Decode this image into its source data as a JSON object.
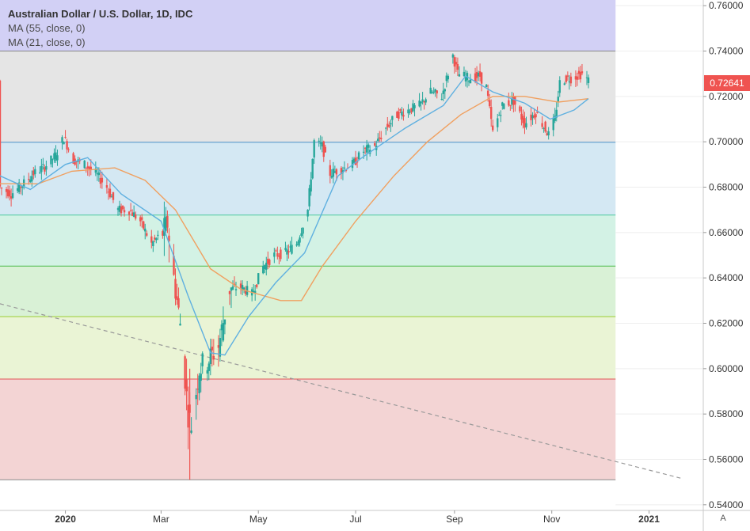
{
  "legend": {
    "title": "Australian Dollar / U.S. Dollar, 1D, IDC",
    "ma1": "MA (55, close, 0)",
    "ma2": "MA (21, close, 0)"
  },
  "last_price": "0.72641",
  "auto_label": "A",
  "colors": {
    "up": "#26a69a",
    "down": "#ef5350",
    "ma55": "#f0a060",
    "ma21": "#5fb0e0",
    "trendline": "#999999"
  },
  "chart_data": {
    "type": "candlestick",
    "x_ticks": [
      "2020",
      "Mar",
      "May",
      "Jul",
      "Sep",
      "Nov",
      "2021"
    ],
    "y_ticks": [
      "0.76000",
      "0.74000",
      "0.72000",
      "0.70000",
      "0.68000",
      "0.66000",
      "0.64000",
      "0.62000",
      "0.60000",
      "0.58000",
      "0.56000",
      "0.54000"
    ],
    "ylim": [
      0.5375,
      0.7625
    ],
    "xlim": [
      "2019-11-21",
      "2021-02-04"
    ],
    "fib_bands": [
      {
        "from": 0.74,
        "to": 0.7625,
        "color": "#d2d0f5"
      },
      {
        "from": 0.6998,
        "to": 0.74,
        "color": "#e5e5e5"
      },
      {
        "from": 0.6677,
        "to": 0.6998,
        "color": "#d4e8f3"
      },
      {
        "from": 0.6452,
        "to": 0.6677,
        "color": "#d3f2e5"
      },
      {
        "from": 0.6229,
        "to": 0.6452,
        "color": "#d9f1d6"
      },
      {
        "from": 0.5954,
        "to": 0.6229,
        "color": "#eaf4d5"
      },
      {
        "from": 0.551,
        "to": 0.5954,
        "color": "#f3d4d4"
      }
    ],
    "fib_levels": [
      {
        "value": 0.74,
        "color": "#888888"
      },
      {
        "value": 0.6998,
        "color": "#4a90c8"
      },
      {
        "value": 0.6677,
        "color": "#4cc8a0"
      },
      {
        "value": 0.6452,
        "color": "#4cbb4c"
      },
      {
        "value": 0.6229,
        "color": "#9acd32"
      },
      {
        "value": 0.5954,
        "color": "#e05555"
      },
      {
        "value": 0.551,
        "color": "#888888"
      }
    ],
    "trendline": {
      "from": [
        "2019-11-21",
        0.6286
      ],
      "to": [
        "2021-01-22",
        0.5515
      ]
    },
    "candle_path": [
      [
        "2019-11-21",
        0.68
      ],
      [
        "2019-11-28",
        0.677
      ],
      [
        "2019-12-05",
        0.681
      ],
      [
        "2019-12-12",
        0.686
      ],
      [
        "2019-12-19",
        0.689
      ],
      [
        "2019-12-26",
        0.694
      ],
      [
        "2019-12-31",
        0.702
      ],
      [
        "2020-01-06",
        0.692
      ],
      [
        "2020-01-13",
        0.69
      ],
      [
        "2020-01-20",
        0.686
      ],
      [
        "2020-01-27",
        0.68
      ],
      [
        "2020-02-03",
        0.67
      ],
      [
        "2020-02-10",
        0.67
      ],
      [
        "2020-02-17",
        0.665
      ],
      [
        "2020-02-24",
        0.655
      ],
      [
        "2020-03-02",
        0.66
      ],
      [
        "2020-03-05",
        0.664
      ],
      [
        "2020-03-09",
        0.64
      ],
      [
        "2020-03-13",
        0.62
      ],
      [
        "2020-03-18",
        0.58
      ],
      [
        "2020-03-20",
        0.575
      ],
      [
        "2020-03-25",
        0.6
      ],
      [
        "2020-04-01",
        0.605
      ],
      [
        "2020-04-06",
        0.61
      ],
      [
        "2020-04-13",
        0.635
      ],
      [
        "2020-04-20",
        0.636
      ],
      [
        "2020-04-27",
        0.633
      ],
      [
        "2020-05-04",
        0.645
      ],
      [
        "2020-05-11",
        0.65
      ],
      [
        "2020-05-18",
        0.651
      ],
      [
        "2020-05-25",
        0.655
      ],
      [
        "2020-06-01",
        0.67
      ],
      [
        "2020-06-05",
        0.7
      ],
      [
        "2020-06-10",
        0.698
      ],
      [
        "2020-06-15",
        0.686
      ],
      [
        "2020-06-22",
        0.688
      ],
      [
        "2020-06-29",
        0.69
      ],
      [
        "2020-07-06",
        0.696
      ],
      [
        "2020-07-13",
        0.698
      ],
      [
        "2020-07-20",
        0.706
      ],
      [
        "2020-07-27",
        0.712
      ],
      [
        "2020-08-03",
        0.714
      ],
      [
        "2020-08-10",
        0.716
      ],
      [
        "2020-08-17",
        0.722
      ],
      [
        "2020-08-24",
        0.72
      ],
      [
        "2020-08-31",
        0.738
      ],
      [
        "2020-09-03",
        0.73
      ],
      [
        "2020-09-10",
        0.728
      ],
      [
        "2020-09-17",
        0.729
      ],
      [
        "2020-09-21",
        0.724
      ],
      [
        "2020-09-25",
        0.704
      ],
      [
        "2020-10-01",
        0.716
      ],
      [
        "2020-10-08",
        0.718
      ],
      [
        "2020-10-15",
        0.708
      ],
      [
        "2020-10-22",
        0.713
      ],
      [
        "2020-10-30",
        0.703
      ],
      [
        "2020-11-03",
        0.71
      ],
      [
        "2020-11-06",
        0.726
      ],
      [
        "2020-11-10",
        0.728
      ],
      [
        "2020-11-13",
        0.728
      ],
      [
        "2020-11-20",
        0.73
      ],
      [
        "2020-11-24",
        0.727
      ]
    ],
    "ma55": [
      [
        "2019-11-21",
        0.6815
      ],
      [
        "2019-12-15",
        0.6815
      ],
      [
        "2020-01-05",
        0.687
      ],
      [
        "2020-02-01",
        0.6885
      ],
      [
        "2020-02-20",
        0.683
      ],
      [
        "2020-03-10",
        0.67
      ],
      [
        "2020-04-01",
        0.644
      ],
      [
        "2020-04-20",
        0.635
      ],
      [
        "2020-05-15",
        0.63
      ],
      [
        "2020-05-28",
        0.63
      ],
      [
        "2020-06-10",
        0.645
      ],
      [
        "2020-07-01",
        0.665
      ],
      [
        "2020-07-25",
        0.685
      ],
      [
        "2020-08-15",
        0.7
      ],
      [
        "2020-09-05",
        0.712
      ],
      [
        "2020-09-25",
        0.72
      ],
      [
        "2020-10-15",
        0.72
      ],
      [
        "2020-11-05",
        0.7175
      ],
      [
        "2020-11-24",
        0.719
      ]
    ],
    "ma21": [
      [
        "2019-11-21",
        0.685
      ],
      [
        "2019-12-10",
        0.679
      ],
      [
        "2020-01-01",
        0.69
      ],
      [
        "2020-01-15",
        0.693
      ],
      [
        "2020-02-05",
        0.677
      ],
      [
        "2020-03-01",
        0.665
      ],
      [
        "2020-03-18",
        0.632
      ],
      [
        "2020-04-01",
        0.607
      ],
      [
        "2020-04-10",
        0.606
      ],
      [
        "2020-04-25",
        0.623
      ],
      [
        "2020-05-12",
        0.638
      ],
      [
        "2020-05-30",
        0.651
      ],
      [
        "2020-06-20",
        0.685
      ],
      [
        "2020-07-05",
        0.693
      ],
      [
        "2020-08-01",
        0.706
      ],
      [
        "2020-08-25",
        0.716
      ],
      [
        "2020-09-08",
        0.729
      ],
      [
        "2020-09-25",
        0.722
      ],
      [
        "2020-10-15",
        0.717
      ],
      [
        "2020-10-31",
        0.71
      ],
      [
        "2020-11-15",
        0.714
      ],
      [
        "2020-11-24",
        0.719
      ]
    ]
  }
}
